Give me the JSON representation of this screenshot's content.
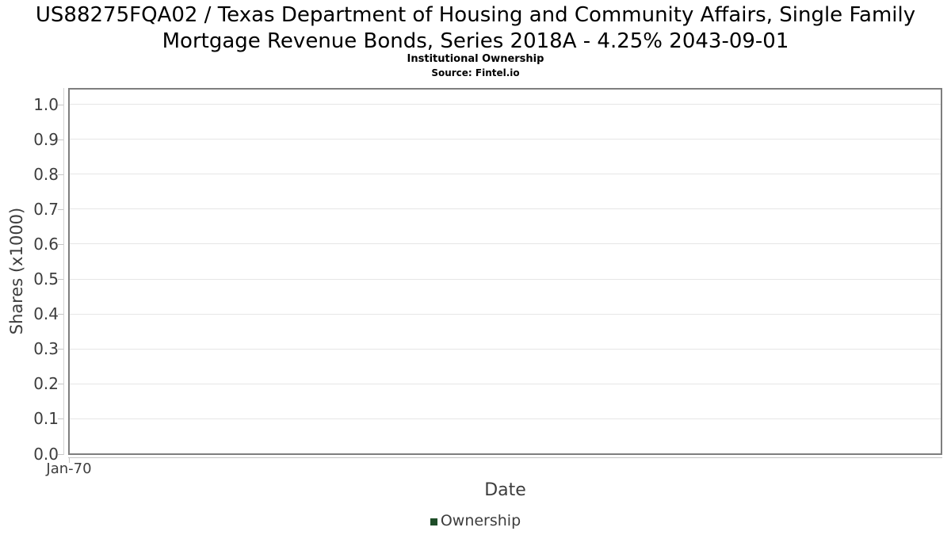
{
  "chart_data": {
    "type": "line",
    "title": "US88275FQA02 / Texas Department of Housing and Community Affairs, Single Family Mortgage Revenue Bonds, Series 2018A - 4.25% 2043-09-01",
    "subtitle": "Institutional Ownership",
    "source": "Source: Fintel.io",
    "xlabel": "Date",
    "ylabel": "Shares (x1000)",
    "x": [],
    "series": [
      {
        "name": "Ownership",
        "color": "#1e4d28",
        "values": []
      }
    ],
    "xtick_labels": [
      "Jan-70"
    ],
    "ytick_labels": [
      "0.0",
      "0.1",
      "0.2",
      "0.3",
      "0.4",
      "0.5",
      "0.6",
      "0.7",
      "0.8",
      "0.9",
      "1.0"
    ],
    "ylim": [
      0.0,
      1.05
    ],
    "grid": true,
    "grid_axis": "y",
    "legend_position": "bottom"
  },
  "colors": {
    "series_green": "#1e4d28",
    "axis_text": "#3d3d3d",
    "title_text": "#000000",
    "gridline": "#e6e6e6",
    "plot_border": "#7e7e7e",
    "axis_line": "#c6c6c6",
    "background": "#ffffff"
  }
}
